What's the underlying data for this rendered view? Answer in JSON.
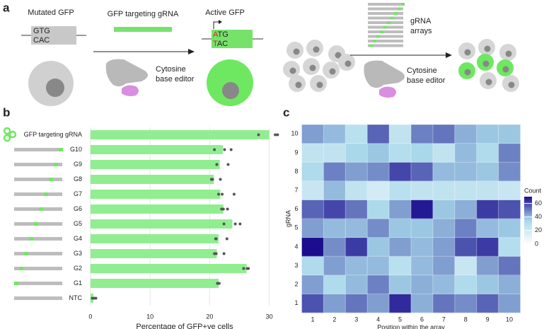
{
  "diagram": {
    "panel_a": "a",
    "panel_b": "b",
    "panel_c": "c",
    "mutated_gfp": "Mutated GFP",
    "mut_top": "GTG",
    "mut_bottom": "CAC",
    "targeting_grna": "GFP targeting gRNA",
    "active_gfp": "Active GFP",
    "act_top": [
      "A",
      "TG"
    ],
    "act_bottom": [
      "T",
      "AC"
    ],
    "editor_1": [
      "Cytosine",
      "base editor"
    ],
    "editor_2": [
      "Cytosine",
      "base editor"
    ],
    "grna_arrays": [
      "gRNA",
      "arrays"
    ]
  },
  "chart_data": [
    {
      "type": "bar",
      "orientation": "horizontal",
      "categories": [
        "GFP targeting gRNA",
        "G10",
        "G9",
        "G8",
        "G7",
        "G6",
        "G5",
        "G4",
        "G3",
        "G2",
        "G1",
        "NTC"
      ],
      "values": [
        30,
        22.2,
        21.7,
        20.7,
        21.8,
        22.3,
        23.8,
        21.5,
        21.2,
        26.2,
        21.5,
        0.5
      ],
      "replicates": [
        [
          28.2,
          31,
          31.4
        ],
        [
          20.8,
          22.5,
          23.6
        ],
        [
          21.2,
          21.2,
          23.1
        ],
        [
          20.3,
          20.5,
          21.8
        ],
        [
          21.5,
          22.1,
          24.1
        ],
        [
          22,
          22.3,
          23
        ],
        [
          22.4,
          24.3,
          25.1
        ],
        [
          21,
          21.1,
          22.9
        ],
        [
          20.8,
          21.1,
          22.4
        ],
        [
          25.7,
          26.3,
          26.5
        ],
        [
          21.3,
          21.5,
          21.6
        ],
        [
          0.3,
          0.6,
          0.9
        ]
      ],
      "color": "#90ee90",
      "point_color": "#555555",
      "xlim": [
        -0.7,
        32.3
      ],
      "xticks": [
        0,
        10,
        20,
        30
      ],
      "xlabel": "Percentage of GFP+ve cells",
      "grid": true
    },
    {
      "type": "heatmap",
      "x": [
        1,
        2,
        3,
        4,
        5,
        6,
        7,
        8,
        9,
        10
      ],
      "y": [
        1,
        2,
        3,
        4,
        5,
        6,
        7,
        8,
        9,
        10
      ],
      "z": [
        [
          58,
          45,
          52,
          45,
          65,
          42,
          52,
          48,
          55,
          45
        ],
        [
          45,
          32,
          40,
          50,
          38,
          42,
          40,
          32,
          38,
          42
        ],
        [
          32,
          45,
          40,
          40,
          28,
          40,
          45,
          22,
          45,
          52
        ],
        [
          70,
          48,
          62,
          38,
          45,
          40,
          45,
          58,
          62,
          30
        ],
        [
          45,
          40,
          40,
          48,
          38,
          38,
          42,
          50,
          40,
          38
        ],
        [
          55,
          60,
          52,
          33,
          45,
          68,
          38,
          42,
          62,
          58
        ],
        [
          22,
          40,
          25,
          18,
          28,
          25,
          25,
          25,
          25,
          22
        ],
        [
          32,
          50,
          45,
          48,
          60,
          55,
          40,
          40,
          38,
          48
        ],
        [
          25,
          25,
          35,
          38,
          30,
          35,
          25,
          40,
          32,
          50
        ],
        [
          45,
          40,
          28,
          55,
          25,
          50,
          52,
          42,
          38,
          38
        ]
      ],
      "zlim": [
        0,
        70
      ],
      "colormap": [
        "#ffffff",
        "#a8d8ea",
        "#1c0d8f"
      ],
      "colorbar_title": "Count",
      "colorbar_ticks": [
        0,
        20,
        40,
        60
      ],
      "xlabel": "Position within the array",
      "ylabel": "gRNA"
    }
  ]
}
